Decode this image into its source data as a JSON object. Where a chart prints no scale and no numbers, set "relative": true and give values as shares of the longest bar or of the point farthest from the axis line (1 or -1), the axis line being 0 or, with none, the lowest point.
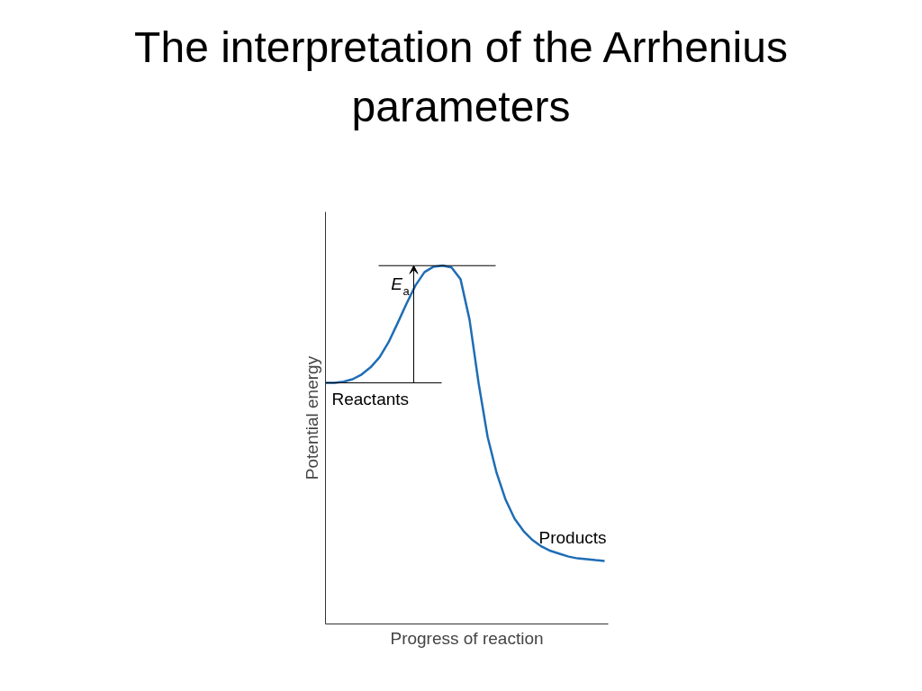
{
  "chart_data": {
    "type": "line",
    "relative": true,
    "title": "The interpretation of the Arrhenius parameters",
    "xlabel": "Progress of reaction",
    "ylabel": "Potential energy",
    "categories": [
      null,
      null,
      null,
      null,
      null,
      null,
      null,
      null,
      null,
      null,
      null,
      null,
      null,
      null,
      null,
      null,
      null,
      null,
      null,
      null,
      null,
      null,
      null,
      null,
      null,
      null,
      null,
      null,
      null,
      null,
      null,
      null
    ],
    "series": [
      {
        "color": "#1f6db5",
        "values": [
          0.673,
          0.673,
          0.676,
          0.683,
          0.696,
          0.716,
          0.744,
          0.786,
          0.839,
          0.894,
          0.945,
          0.982,
          0.997,
          1,
          0.995,
          0.962,
          0.849,
          0.673,
          0.523,
          0.422,
          0.347,
          0.294,
          0.259,
          0.234,
          0.216,
          0.204,
          0.196,
          0.188,
          0.183,
          0.181,
          0.178,
          0.176
        ]
      }
    ],
    "ref_lines": [
      {
        "axis": "y",
        "value": 1,
        "label": null,
        "color": "#000000"
      },
      {
        "axis": "y",
        "value": 0.673,
        "label": null,
        "color": "#000000"
      }
    ],
    "annotations": [
      {
        "text": "E$_{a}$",
        "y": 1
      },
      {
        "text": "Reactants",
        "y": 0.673
      },
      {
        "text": "Products",
        "y": 0.176
      }
    ],
    "marker": "none",
    "line_style": "solid"
  }
}
